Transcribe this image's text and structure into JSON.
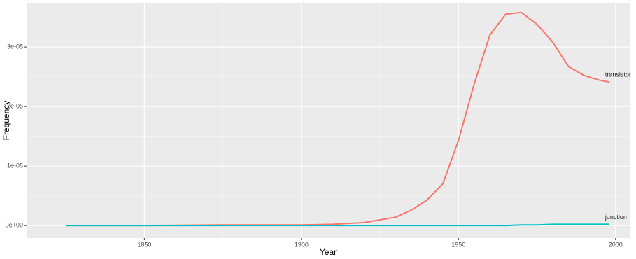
{
  "chart_data": {
    "type": "line",
    "x_label": "Year",
    "y_label": "Frequency",
    "x": [
      1825,
      1850,
      1875,
      1900,
      1910,
      1920,
      1930,
      1935,
      1940,
      1945,
      1950,
      1955,
      1960,
      1965,
      1970,
      1975,
      1980,
      1985,
      1990,
      1995,
      1998
    ],
    "series": [
      {
        "name": "transistor",
        "color": "#F8766D",
        "values": [
          0,
          0,
          1e-07,
          1e-07,
          2e-07,
          5e-07,
          1.4e-06,
          2.6e-06,
          4.3e-06,
          7e-06,
          1.43e-05,
          2.38e-05,
          3.2e-05,
          3.55e-05,
          3.58e-05,
          3.38e-05,
          3.08e-05,
          2.67e-05,
          2.52e-05,
          2.44e-05,
          2.41e-05
        ]
      },
      {
        "name": "junction",
        "color": "#00BFC4",
        "values": [
          0,
          0,
          0,
          0,
          0,
          0,
          0,
          0,
          0,
          0,
          0,
          0,
          0,
          0,
          1e-07,
          1e-07,
          2e-07,
          2e-07,
          2e-07,
          2e-07,
          2e-07
        ]
      }
    ],
    "xlim": [
      1812.5,
      2004.5
    ],
    "xticks": [
      1850,
      1900,
      1950,
      2000
    ],
    "ylim": [
      -2.1e-06,
      3.73e-05
    ],
    "yticks": [
      {
        "value": 0,
        "label": "0e+00"
      },
      {
        "value": 1e-05,
        "label": "1e-05"
      },
      {
        "value": 2e-05,
        "label": "2e-05"
      },
      {
        "value": 3e-05,
        "label": "3e-05"
      }
    ],
    "grid": true
  }
}
